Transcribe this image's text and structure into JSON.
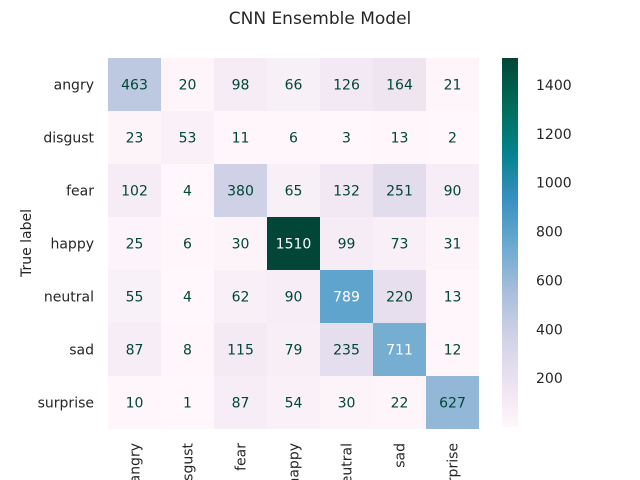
{
  "chart_data": {
    "type": "heatmap",
    "title": "CNN Ensemble Model",
    "ylabel": "True label",
    "xlabel": "",
    "row_labels": [
      "angry",
      "disgust",
      "fear",
      "happy",
      "neutral",
      "sad",
      "surprise"
    ],
    "col_labels": [
      "angry",
      "sgust",
      "fear",
      "happy",
      "eutral",
      "sad",
      "rprise"
    ],
    "values": [
      [
        463,
        20,
        98,
        66,
        126,
        164,
        21
      ],
      [
        23,
        53,
        11,
        6,
        3,
        13,
        2
      ],
      [
        102,
        4,
        380,
        65,
        132,
        251,
        90
      ],
      [
        25,
        6,
        30,
        1510,
        99,
        73,
        31
      ],
      [
        55,
        4,
        62,
        90,
        789,
        220,
        13
      ],
      [
        87,
        8,
        115,
        79,
        235,
        711,
        12
      ],
      [
        10,
        1,
        87,
        54,
        30,
        22,
        627
      ]
    ],
    "colormap": "PuBuGn",
    "vmin": 0,
    "vmax": 1510,
    "colorbar_ticks": [
      200,
      400,
      600,
      800,
      1000,
      1200,
      1400
    ]
  }
}
